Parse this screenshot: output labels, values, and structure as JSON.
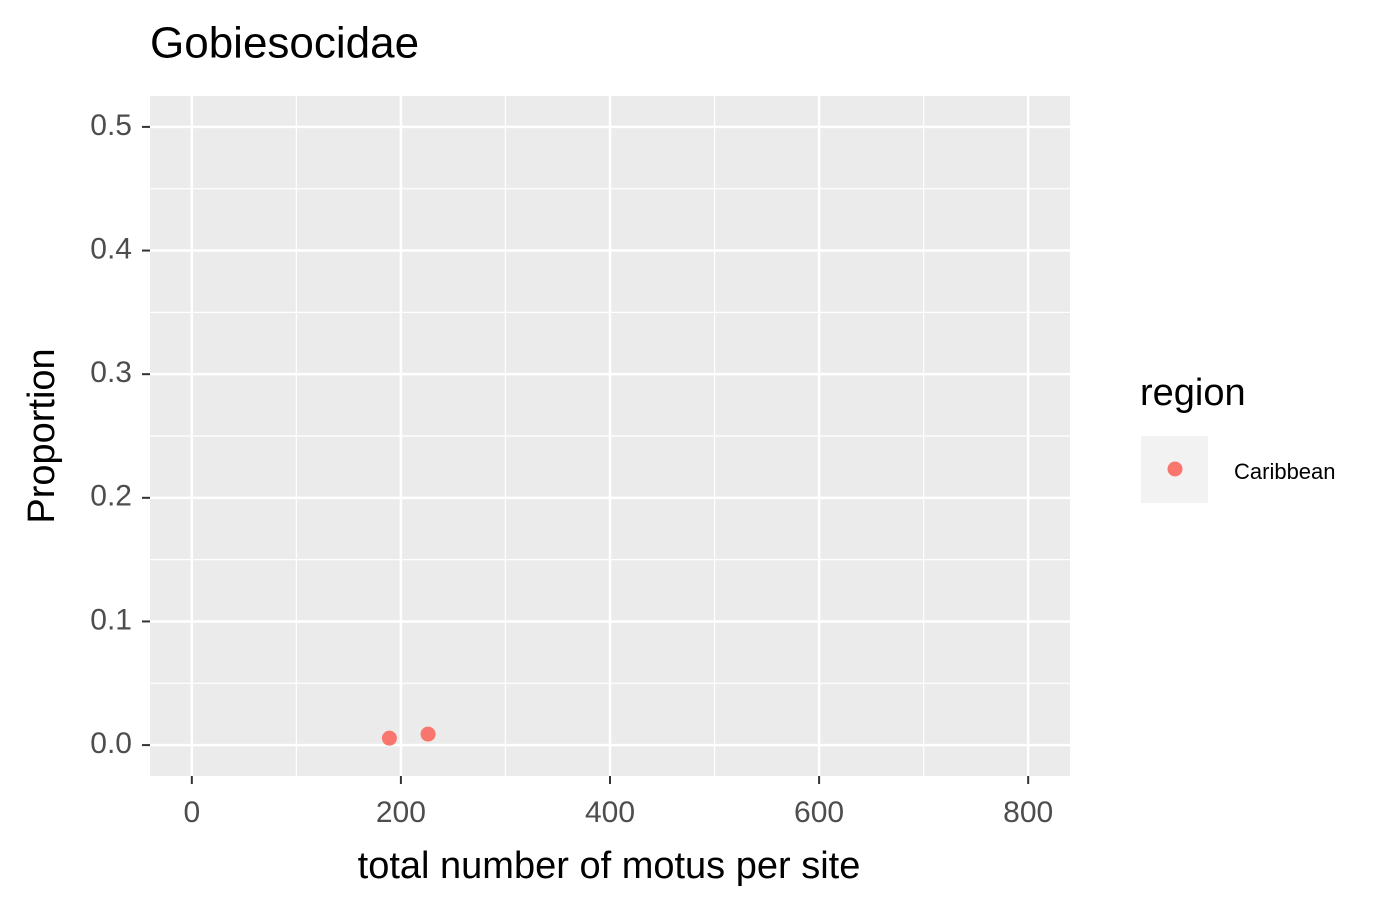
{
  "chart_data": {
    "type": "scatter",
    "title": "Gobiesocidae",
    "x_label": "total number of motus per site",
    "y_label": "Proportion",
    "series": [
      {
        "name": "Caribbean",
        "color": "#F8766D",
        "x": [
          189,
          226
        ],
        "values": [
          0.0056,
          0.0089
        ]
      }
    ],
    "xlim": [
      -40,
      840
    ],
    "xticks": [
      0,
      200,
      400,
      600,
      800
    ],
    "x_minor_ticks": [
      100,
      300,
      500,
      700
    ],
    "ylim": [
      -0.025,
      0.525
    ],
    "yticks": [
      {
        "value": 0,
        "label": "0.0"
      },
      0.1,
      0.2,
      0.3,
      0.4,
      0.5
    ],
    "y_minor_ticks": [
      0.05,
      0.15,
      0.25,
      0.35,
      0.45
    ],
    "grid": true,
    "legend": {
      "title": "region",
      "position": "right"
    }
  }
}
